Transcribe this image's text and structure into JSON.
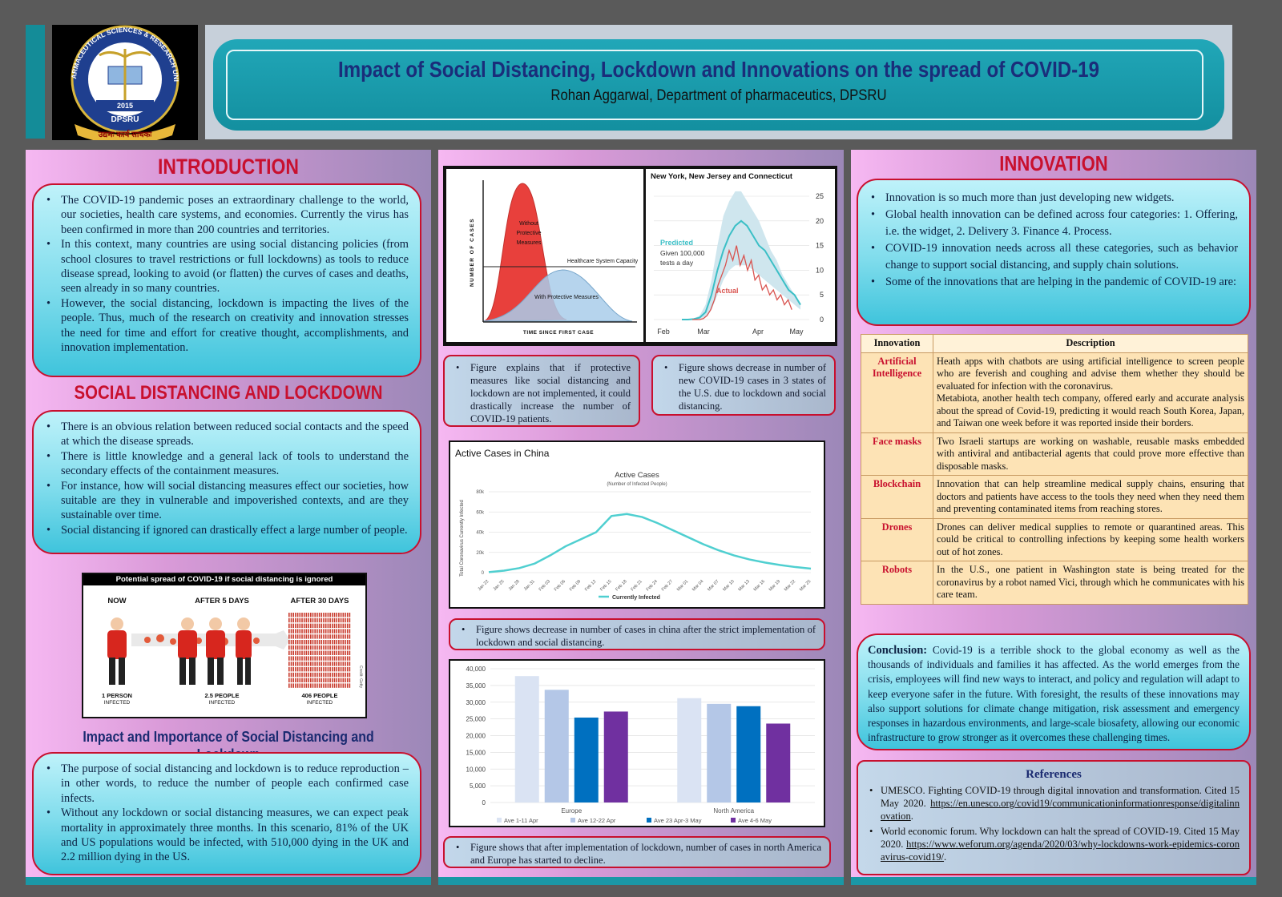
{
  "header": {
    "title": "Impact of Social Distancing, Lockdown and Innovations on the spread of COVID-19",
    "author": "Rohan Aggarwal, Department of pharmaceutics, DPSRU"
  },
  "logo": {
    "university_name": "DELHI PHARMACEUTICAL SCIENCES & RESEARCH UNIVERSITY",
    "year": "2015",
    "abbr": "DPSRU",
    "motto": "उद्यमः कार्य साधकः"
  },
  "introduction": {
    "title": "INTRODUCTION",
    "bullets": [
      "The COVID-19 pandemic poses an extraordinary challenge to the world, our societies, health care systems, and economies. Currently the virus has been confirmed in more than 200 countries and territories.",
      "In this context, many countries are using social distancing policies (from school closures to travel restrictions or full lockdowns) as tools to reduce disease spread, looking to avoid (or flatten) the curves of cases and deaths, seen already in so many countries.",
      "However, the social distancing, lockdown is impacting the lives of the people. Thus, much of the research on creativity and innovation stresses the need for time and effort for creative thought, accomplishments, and innovation implementation."
    ]
  },
  "social_distancing": {
    "title": "SOCIAL DISTANCING AND LOCKDOWN",
    "bullets": [
      "There is an obvious relation between reduced social contacts and the speed at which the disease spreads.",
      "There is little knowledge and a general lack of tools to understand the secondary effects of the containment measures.",
      "For instance, how will social distancing measures effect our societies, how suitable are they in vulnerable and impoverished contexts, and are they sustainable over time.",
      "Social distancing if ignored can drastically effect a large number of people."
    ]
  },
  "spread_infographic": {
    "title": "Potential spread of COVID-19 if social distancing is ignored",
    "stages": [
      {
        "label": "NOW",
        "count": "1 PERSON",
        "sub": "INFECTED"
      },
      {
        "label": "AFTER 5 DAYS",
        "count": "2.5 PEOPLE",
        "sub": "INFECTED"
      },
      {
        "label": "AFTER 30 DAYS",
        "count": "406 PEOPLE",
        "sub": "INFECTED"
      }
    ],
    "side_note": "Credit: Getty"
  },
  "impact": {
    "title": "Impact and Importance of Social Distancing and Lockdown",
    "bullets": [
      "The purpose of social distancing and lockdown is to reduce reproduction – in other words, to reduce the number of people each confirmed case infects.",
      "Without any lockdown or social distancing measures, we can expect peak mortality in approximately three months. In this scenario, 81% of the UK and US populations would be infected, with 510,000 dying in the UK and 2.2 million dying in the US."
    ]
  },
  "curve_figure": {
    "y_label": "NUMBER OF CASES",
    "x_label": "TIME SINCE FIRST CASE",
    "without_label": "Without Protective Measures",
    "capacity_label": "Healthcare System Capacity",
    "with_label": "With Protective Measures",
    "colors": {
      "without": "#e8403c",
      "with": "#a9cdea"
    }
  },
  "ny_figure": {
    "title": "New York, New Jersey and Connecticut",
    "predicted_label": "Predicted",
    "given_label": "Given 100,000 tests a day",
    "actual_label": "Actual",
    "y_ticks": [
      "25",
      "20",
      "15",
      "10",
      "5",
      "0"
    ],
    "x_ticks": [
      "Feb",
      "Mar",
      "Apr",
      "May"
    ],
    "colors": {
      "predicted": "#3bbfc6",
      "band": "#cfe6ee",
      "actual": "#d9534f"
    }
  },
  "caption1": "Figure explains that if protective measures like social distancing and lockdown are not implemented, it could drastically increase the number of COVID-19 patients.",
  "caption2": "Figure shows decrease in number of new COVID-19 cases in 3 states of the U.S. due to lockdown and social distancing.",
  "caption3": "Figure shows decrease in number of cases in china after the strict implementation of lockdown and social distancing.",
  "caption4": "Figure shows that after implementation of lockdown, number of cases in north America and Europe has started to decline.",
  "china_chart": {
    "header": "Active Cases in China",
    "chart_data": {
      "type": "line",
      "title": "Active Cases",
      "subtitle": "(Number of Infected People)",
      "ylabel": "Total Coronavirus Currently Infected",
      "legend": "Currently Infected",
      "y_ticks": [
        "0",
        "20k",
        "40k",
        "60k",
        "80k"
      ],
      "ylim": [
        0,
        80000
      ],
      "x": [
        "Jan 22",
        "Jan 25",
        "Jan 28",
        "Jan 31",
        "Feb 03",
        "Feb 06",
        "Feb 09",
        "Feb 12",
        "Feb 15",
        "Feb 18",
        "Feb 21",
        "Feb 24",
        "Feb 27",
        "Mar 01",
        "Mar 04",
        "Mar 07",
        "Mar 10",
        "Mar 13",
        "Mar 16",
        "Mar 19",
        "Mar 22",
        "Mar 25"
      ],
      "values": [
        500,
        2000,
        4500,
        9000,
        17000,
        26000,
        33000,
        40000,
        56000,
        58000,
        55000,
        49000,
        42000,
        35000,
        28000,
        22000,
        17000,
        13000,
        10000,
        7500,
        5500,
        4000
      ],
      "color": "#4fcfd0"
    }
  },
  "bar_chart": {
    "chart_data": {
      "type": "bar",
      "categories": [
        "Europe",
        "North America"
      ],
      "series": [
        {
          "name": "Ave 1-11 Apr",
          "values": [
            37800,
            31200
          ],
          "color": "#dae3f3"
        },
        {
          "name": "Ave 12-22 Apr",
          "values": [
            33700,
            29500
          ],
          "color": "#b4c7e7"
        },
        {
          "name": "Ave 23 Apr-3 May",
          "values": [
            25400,
            28800
          ],
          "color": "#0070c0"
        },
        {
          "name": "Ave 4-6 May",
          "values": [
            27200,
            23600
          ],
          "color": "#7030a0"
        }
      ],
      "y_ticks": [
        "40,000",
        "35,000",
        "30,000",
        "25,000",
        "20,000",
        "15,000",
        "10,000",
        "5,000",
        "0"
      ],
      "ylim": [
        0,
        40000
      ]
    }
  },
  "innovation": {
    "title": "INNOVATION",
    "bullets": [
      "Innovation is so much more than just developing new widgets.",
      "Global health innovation can be defined across four categories: 1. Offering, i.e. the widget, 2. Delivery 3. Finance 4. Process.",
      "COVID-19 innovation needs across all these categories, such as behavior change to support social distancing, and supply chain solutions.",
      "Some of the innovations that are helping in the pandemic of COVID-19 are:"
    ]
  },
  "innovation_table": {
    "headers": [
      "Innovation",
      "Description"
    ],
    "rows": [
      {
        "name": "Artificial Intelligence",
        "desc": "Heath apps with chatbots are using artificial intelligence to screen people who are feverish and coughing and advise them whether they should be evaluated for infection with the coronavirus.",
        "desc2": "Metabiota, another health tech company, offered early and accurate analysis about the spread of Covid-19, predicting it would reach South Korea, Japan, and Taiwan one week before it was reported inside their borders."
      },
      {
        "name": "Face masks",
        "desc": "Two Israeli startups are working on washable, reusable masks embedded with antiviral and antibacterial agents that could prove more effective than disposable masks.",
        "desc2": ""
      },
      {
        "name": "Blockchain",
        "desc": "Innovation that can help streamline medical supply chains, ensuring that doctors and patients have access to the tools they need when they need them and preventing contaminated items from reaching stores.",
        "desc2": ""
      },
      {
        "name": "Drones",
        "desc": "Drones can deliver medical supplies to remote or quarantined areas. This could be critical to controlling infections by keeping some health workers out of hot zones.",
        "desc2": ""
      },
      {
        "name": "Robots",
        "desc": "In the U.S., one patient in Washington state is being treated for the coronavirus by a robot named Vici, through which he communicates with his care team.",
        "desc2": ""
      }
    ]
  },
  "conclusion": {
    "label": "Conclusion:",
    "text": "Covid-19 is a terrible shock to the global economy as well as the thousands of individuals and families it has affected. As the world emerges from the crisis, employees will find new ways to interact, and policy and regulation will adapt to keep everyone safer in the future. With foresight, the results of these innovations may also support solutions for climate change mitigation, risk assessment and emergency responses in hazardous environments, and large-scale biosafety, allowing our economic infrastructure to grow stronger as it overcomes these challenging times."
  },
  "references": {
    "title": "References",
    "items": [
      {
        "text": "UMESCO. Fighting COVID-19 through digital innovation and transformation. Cited 15 May 2020.",
        "link": "https://en.unesco.org/covid19/communicationinformationresponse/digitalinnovation",
        "end": "."
      },
      {
        "text": "World economic forum. Why lockdown can halt the spread of COVID-19. Cited 15 May 2020.",
        "link": "https://www.weforum.org/agenda/2020/03/why-lockdowns-work-epidemics-coronavirus-covid19/",
        "end": "."
      }
    ]
  }
}
